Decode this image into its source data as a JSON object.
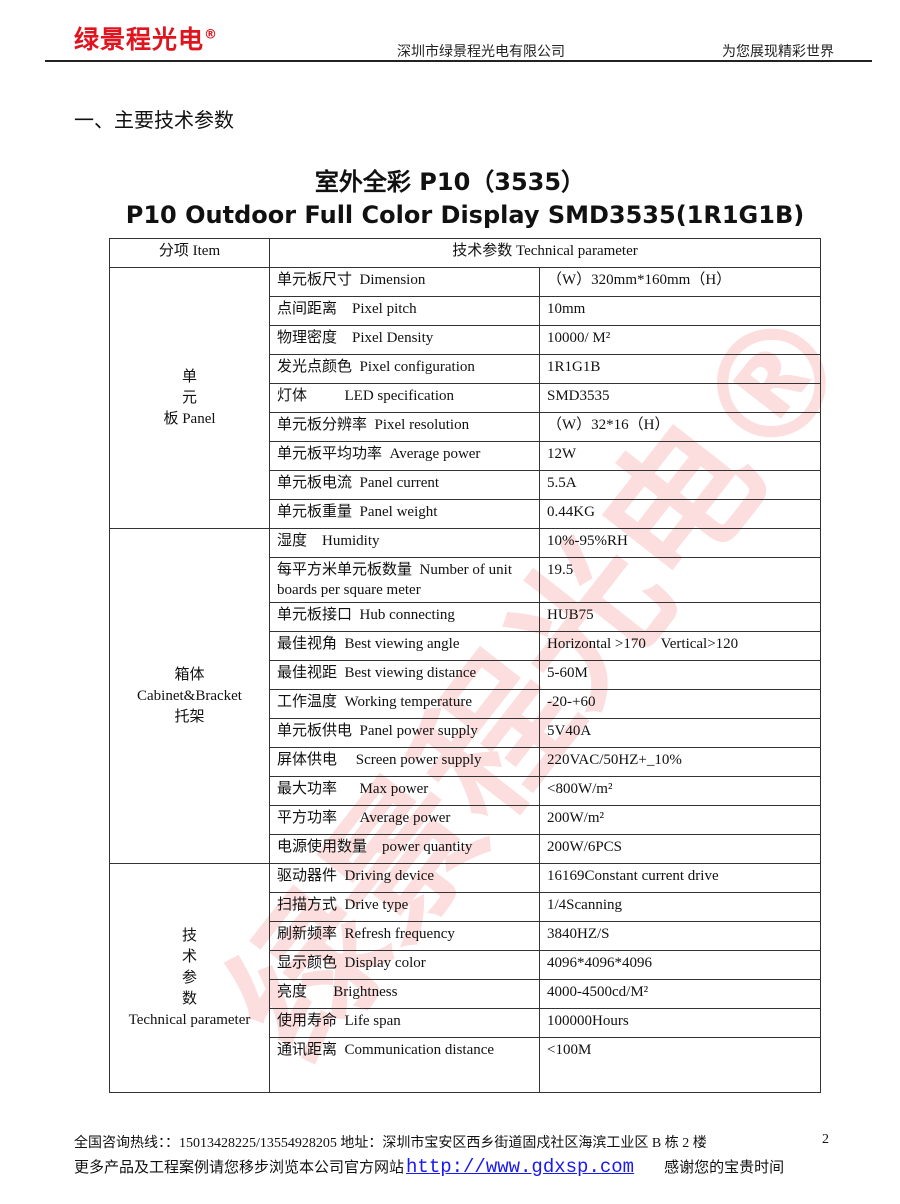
{
  "header": {
    "logo": "绿景程光电",
    "reg": "®",
    "company": "深圳市绿景程光电有限公司",
    "slogan": "为您展现精彩世界"
  },
  "section_title": "一、主要技术参数",
  "title_cn": "室外全彩 P10（3535）",
  "title_en": "P10 Outdoor Full Color Display SMD3535(1R1G1B)",
  "table": {
    "head": [
      "分项 Item",
      "技术参数 Technical parameter"
    ],
    "groups": [
      {
        "label": [
          "单",
          "元",
          "板 Panel"
        ],
        "rows": [
          [
            "单元板尺寸  Dimension",
            "（W）320mm*160mm（H）"
          ],
          [
            "点间距离    Pixel pitch",
            "10mm"
          ],
          [
            "物理密度    Pixel Density",
            "10000/ M²"
          ],
          [
            "发光点颜色  Pixel configuration",
            "1R1G1B"
          ],
          [
            "灯体          LED specification",
            "SMD3535"
          ],
          [
            "单元板分辨率  Pixel resolution",
            "（W）32*16（H）"
          ],
          [
            "单元板平均功率  Average power",
            "12W"
          ],
          [
            "单元板电流  Panel current",
            "5.5A"
          ],
          [
            "单元板重量  Panel weight",
            "0.44KG"
          ]
        ]
      },
      {
        "label": [
          "箱体",
          "Cabinet&Bracket",
          "托架"
        ],
        "rows": [
          [
            "湿度    Humidity",
            "10%-95%RH"
          ],
          [
            "每平方米单元板数量  Number of unit boards per square meter",
            "19.5"
          ],
          [
            "单元板接口  Hub connecting",
            "HUB75"
          ],
          [
            "最佳视角  Best viewing angle",
            "Horizontal >170    Vertical>120"
          ],
          [
            "最佳视距  Best viewing distance",
            "5-60M"
          ],
          [
            "工作温度  Working temperature",
            "-20-+60"
          ],
          [
            "单元板供电  Panel power supply",
            "5V40A"
          ],
          [
            "屏体供电     Screen power supply",
            "220VAC/50HZ+_10%"
          ],
          [
            "最大功率      Max power",
            "<800W/m²"
          ],
          [
            "平方功率      Average power",
            "200W/m²"
          ],
          [
            "电源使用数量    power quantity",
            "200W/6PCS"
          ]
        ]
      },
      {
        "label": [
          "技",
          "术",
          "参",
          "数",
          "Technical parameter"
        ],
        "rows": [
          [
            "驱动器件  Driving device",
            "16169Constant current drive"
          ],
          [
            "扫描方式  Drive type",
            "1/4Scanning"
          ],
          [
            "刷新频率  Refresh frequency",
            "3840HZ/S"
          ],
          [
            "显示颜色  Display color",
            "4096*4096*4096"
          ],
          [
            "亮度       Brightness",
            "4000-4500cd/M²"
          ],
          [
            "使用寿命  Life span",
            "100000Hours"
          ],
          [
            "通讯距离  Communication distance",
            "<100M"
          ]
        ]
      }
    ]
  },
  "watermark": "绿景程光电®",
  "footer": {
    "hotline": "全国咨询热线：：15013428225/13554928205    地址：深圳市宝安区西乡街道固戍社区海滨工业区 B 栋 2 楼",
    "more": "更多产品及工程案例请您移步浏览本公司官方网站",
    "url": "http://www.gdxsp.com",
    "thanks": "感谢您的宝贵时间",
    "page": "2"
  }
}
